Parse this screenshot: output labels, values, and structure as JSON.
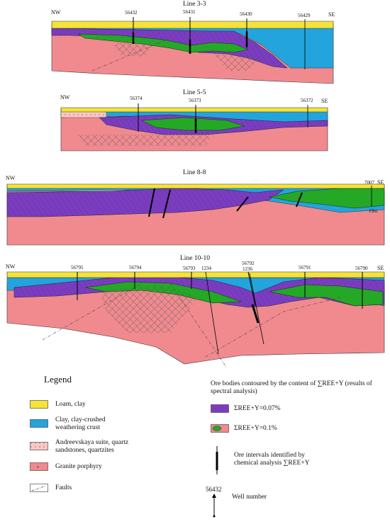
{
  "sections": [
    {
      "title": "Line 3-3",
      "nw": "NW",
      "se": "SE",
      "wells": [
        "56432",
        "56431",
        "56430",
        "56429"
      ]
    },
    {
      "title": "Line 5-5",
      "nw": "NW",
      "se": "SE",
      "wells": [
        "56374",
        "56373",
        "56372"
      ]
    },
    {
      "title": "Line 8-8",
      "nw": "NW",
      "se": "SE",
      "wells": [
        "7007"
      ],
      "depth_label": "19m"
    },
    {
      "title": "Line 10-10",
      "nw": "NW",
      "se": "SE",
      "wells": [
        "56795",
        "56794",
        "56793",
        "1234",
        "56792",
        "1236",
        "56791",
        "56790"
      ]
    }
  ],
  "legend": {
    "title": "Legend",
    "items": [
      {
        "label": "Loam, clay",
        "color": "#f5e23a"
      },
      {
        "label": "Clay, clay-crushed weathering crust",
        "color": "#23a4dc"
      },
      {
        "label": "Andreevskaya suite, quartz sandstones, quartzites",
        "color": "#f7c9c5"
      },
      {
        "label": "Granite porphyry",
        "color": "#f08a8f"
      },
      {
        "label": "Faults",
        "color": "#444444"
      }
    ],
    "ore_title": "Ore bodies contoured by the content of ∑REE+Y (results of spectral analysis)",
    "ore_items": [
      {
        "label": "ΣREE+Y=0.07%",
        "color": "#7b3dbf"
      },
      {
        "label": "ΣREE+Y=0.1%",
        "color": "#24a826"
      }
    ],
    "interval_label": "Ore intervals identified by chemical analysis ∑REE+Y",
    "well_example": "56432",
    "well_label": "Well number"
  }
}
